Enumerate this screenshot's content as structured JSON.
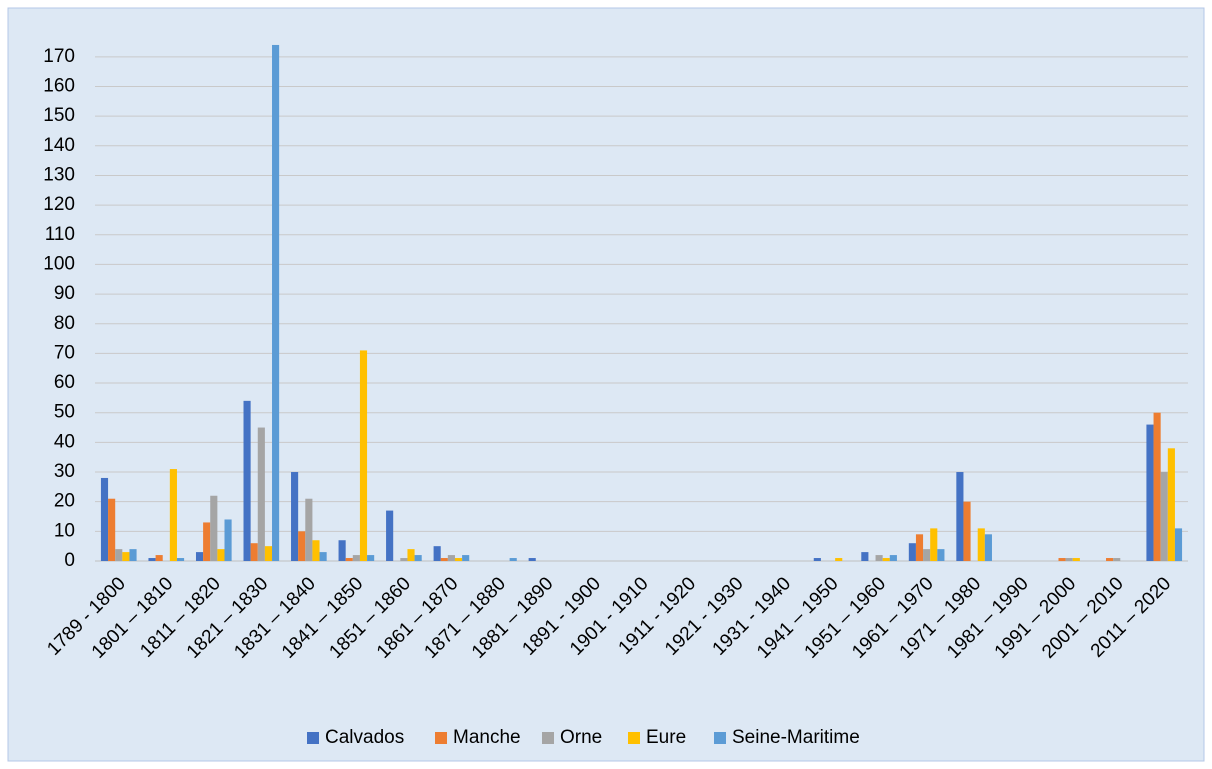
{
  "chart_data": {
    "type": "bar",
    "categories": [
      "1789 - 1800",
      "1801 – 1810",
      "1811 – 1820",
      "1821 – 1830",
      "1831 – 1840",
      "1841 – 1850",
      "1851 – 1860",
      "1861 – 1870",
      "1871 – 1880",
      "1881 – 1890",
      "1891 - 1900",
      "1901 - 1910",
      "1911 - 1920",
      "1921 - 1930",
      "1931 - 1940",
      "1941 – 1950",
      "1951 – 1960",
      "1961 – 1970",
      "1971 – 1980",
      "1981 – 1990",
      "1991 – 2000",
      "2001 – 2010",
      "2011 – 2020"
    ],
    "series": [
      {
        "name": "Calvados",
        "color": "#4472c4",
        "values": [
          28,
          1,
          3,
          54,
          30,
          7,
          17,
          5,
          0,
          1,
          0,
          0,
          0,
          0,
          0,
          1,
          3,
          6,
          30,
          0,
          0,
          0,
          46
        ]
      },
      {
        "name": "Manche",
        "color": "#ed7d31",
        "values": [
          21,
          2,
          13,
          6,
          10,
          1,
          0,
          1,
          0,
          0,
          0,
          0,
          0,
          0,
          0,
          0,
          0,
          9,
          20,
          0,
          1,
          1,
          50
        ]
      },
      {
        "name": "Orne",
        "color": "#a5a5a5",
        "values": [
          4,
          0,
          22,
          45,
          21,
          2,
          1,
          2,
          0,
          0,
          0,
          0,
          0,
          0,
          0,
          0,
          2,
          4,
          0,
          0,
          1,
          1,
          30
        ]
      },
      {
        "name": "Eure",
        "color": "#ffc000",
        "values": [
          3,
          31,
          4,
          5,
          7,
          71,
          4,
          1,
          0,
          0,
          0,
          0,
          0,
          0,
          0,
          1,
          1,
          11,
          11,
          0,
          1,
          0,
          38
        ]
      },
      {
        "name": "Seine-Maritime",
        "color": "#5b9bd5",
        "values": [
          4,
          1,
          14,
          174,
          3,
          2,
          2,
          2,
          1,
          0,
          0,
          0,
          0,
          0,
          0,
          0,
          2,
          4,
          9,
          0,
          0,
          0,
          11
        ]
      }
    ],
    "ylim": [
      0,
      175
    ],
    "yticks": [
      0,
      10,
      20,
      30,
      40,
      50,
      60,
      70,
      80,
      90,
      100,
      110,
      120,
      130,
      140,
      150,
      160,
      170
    ],
    "grid": true,
    "legend": "bottom"
  }
}
